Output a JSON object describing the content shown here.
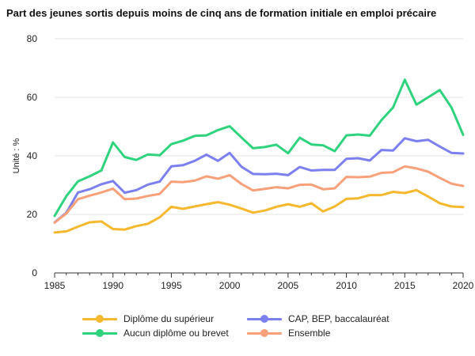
{
  "chart_data": {
    "type": "line",
    "title": "Part des jeunes sortis depuis moins de cinq ans de formation initiale en emploi précaire",
    "ylabel": "Unité : %",
    "xlabel": "",
    "ylim": [
      0,
      80
    ],
    "xlim": [
      1985,
      2020
    ],
    "yticks": [
      0,
      20,
      40,
      60,
      80
    ],
    "xticks": [
      1985,
      1990,
      1995,
      2000,
      2005,
      2010,
      2015,
      2020
    ],
    "grid": "horizontal",
    "legend": "bottom",
    "x": [
      1985,
      1986,
      1987,
      1988,
      1989,
      1990,
      1991,
      1992,
      1993,
      1994,
      1995,
      1996,
      1997,
      1998,
      1999,
      2000,
      2001,
      2002,
      2003,
      2004,
      2005,
      2006,
      2007,
      2008,
      2009,
      2010,
      2011,
      2012,
      2013,
      2014,
      2015,
      2016,
      2017,
      2018,
      2019,
      2020
    ],
    "series": [
      {
        "name": "Diplôme du supérieur",
        "color": "#f5b82e",
        "values": [
          13.8,
          14.2,
          15.8,
          17.3,
          17.6,
          15.0,
          14.8,
          16.0,
          16.8,
          19.0,
          22.6,
          21.9,
          22.7,
          23.5,
          24.2,
          23.3,
          22.0,
          20.6,
          21.3,
          22.6,
          23.5,
          22.6,
          23.8,
          21.0,
          22.7,
          25.3,
          25.5,
          26.6,
          26.6,
          27.7,
          27.3,
          28.3,
          26.1,
          23.8,
          22.7,
          22.5
        ]
      },
      {
        "name": "CAP, BEP, baccalauréat",
        "color": "#7b7ff0",
        "values": [
          17.3,
          20.5,
          27.5,
          28.6,
          30.3,
          31.4,
          27.4,
          28.3,
          30.2,
          31.2,
          36.4,
          36.8,
          38.3,
          40.4,
          38.3,
          41.0,
          36.3,
          33.8,
          33.7,
          33.9,
          33.4,
          36.2,
          35.0,
          35.2,
          35.2,
          39.0,
          39.2,
          38.4,
          42.0,
          41.8,
          46.0,
          45.0,
          45.5,
          43.2,
          41.0,
          40.8
        ]
      },
      {
        "name": "Aucun diplôme ou brevet",
        "color": "#2fd37e",
        "values": [
          19.5,
          26.2,
          31.3,
          33.0,
          35.0,
          44.6,
          39.6,
          38.6,
          40.5,
          40.2,
          44.0,
          45.2,
          46.8,
          47.0,
          48.8,
          50.1,
          46.3,
          42.6,
          43.0,
          43.8,
          40.9,
          46.2,
          43.9,
          43.6,
          41.6,
          47.0,
          47.3,
          46.9,
          52.2,
          56.5,
          66.0,
          57.5,
          60.0,
          62.5,
          56.5,
          47.2
        ]
      },
      {
        "name": "Ensemble",
        "color": "#f8a07a",
        "values": [
          17.2,
          20.3,
          25.2,
          26.4,
          27.5,
          28.8,
          25.2,
          25.4,
          26.3,
          27.0,
          31.2,
          31.0,
          31.5,
          33.0,
          32.2,
          33.4,
          30.4,
          28.2,
          28.7,
          29.3,
          28.9,
          30.1,
          30.2,
          28.6,
          28.9,
          32.8,
          32.7,
          32.9,
          34.2,
          34.4,
          36.4,
          35.7,
          34.6,
          32.5,
          30.5,
          29.7
        ]
      }
    ],
    "legend_order": [
      0,
      1,
      2,
      3
    ]
  }
}
